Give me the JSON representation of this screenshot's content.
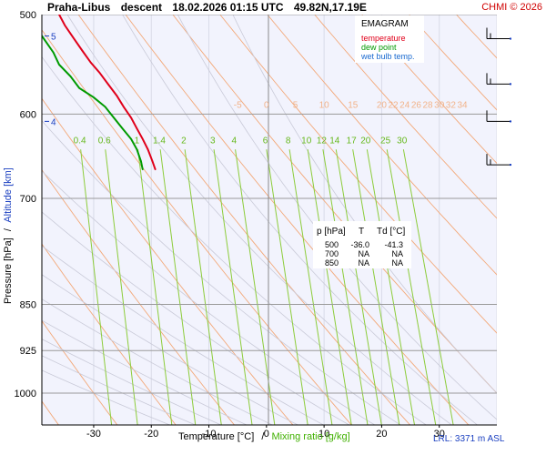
{
  "header": {
    "station": "Praha-Libus",
    "mode": "descent",
    "datetime": "18.02.2026 01:15 UTC",
    "coords": "49.82N,17.19E",
    "credit": "CHMI © 2026"
  },
  "legend": {
    "title": "EMAGRAM",
    "items": [
      {
        "label": "temperature",
        "color": "#e0001a"
      },
      {
        "label": "dew point",
        "color": "#009a00"
      },
      {
        "label": "wet bulb temp.",
        "color": "#1a6ad0"
      }
    ]
  },
  "info_table": {
    "headers": [
      "p [hPa]",
      "T",
      "Td [°C]"
    ],
    "rows": [
      [
        "500",
        "-36.0",
        "-41.3"
      ],
      [
        "700",
        "NA",
        "NA"
      ],
      [
        "850",
        "NA",
        "NA"
      ]
    ]
  },
  "footer": {
    "lrl": "LRL: 3371 m ASL",
    "x_temp_label": "Temperature [°C]",
    "x_sep": "/",
    "x_mix_label": "Mixing ratio [g/kg]"
  },
  "y_axis": {
    "pressure_label": "Pressure [hPa]",
    "sep": "/",
    "altitude_label": "Altitude [km]"
  },
  "chart_data": {
    "type": "line",
    "y_scale": "log",
    "x_range": [
      -39,
      40
    ],
    "y_range": [
      1060,
      500
    ],
    "x_ticks": [
      -30,
      -20,
      -10,
      0,
      10,
      20,
      30
    ],
    "y_ticks": [
      500,
      600,
      700,
      850,
      925,
      1000
    ],
    "altitude_ticks": [
      {
        "label": "5",
        "p": 520
      },
      {
        "label": "4",
        "p": 608
      }
    ],
    "mixing_ratio_labels": [
      "0.4",
      "0.6",
      "1",
      "1.4",
      "2",
      "3",
      "4",
      "6",
      "8",
      "10",
      "12",
      "14",
      "17",
      "20",
      "25",
      "30"
    ],
    "adiabat_labels": [
      "-5",
      "0",
      "5",
      "10",
      "15",
      "20",
      "22",
      "24",
      "26",
      "28",
      "30",
      "32",
      "34"
    ],
    "series": [
      {
        "name": "temperature",
        "color": "#e0001a",
        "points": [
          [
            -36,
            500
          ],
          [
            -35,
            510
          ],
          [
            -33.5,
            522
          ],
          [
            -32,
            534
          ],
          [
            -30.5,
            546
          ],
          [
            -29,
            556
          ],
          [
            -27.5,
            568
          ],
          [
            -26,
            580
          ],
          [
            -24.8,
            592
          ],
          [
            -23.5,
            604
          ],
          [
            -22.5,
            616
          ],
          [
            -21.5,
            628
          ],
          [
            -20.6,
            640
          ],
          [
            -19.8,
            654
          ],
          [
            -19.3,
            664
          ]
        ]
      },
      {
        "name": "dew point",
        "color": "#009a00",
        "points": [
          [
            -41.3,
            500
          ],
          [
            -40,
            512
          ],
          [
            -38.5,
            524
          ],
          [
            -37,
            536
          ],
          [
            -36,
            548
          ],
          [
            -34,
            560
          ],
          [
            -32.5,
            572
          ],
          [
            -30,
            582
          ],
          [
            -28,
            592
          ],
          [
            -26.5,
            604
          ],
          [
            -25,
            616
          ],
          [
            -23.5,
            628
          ],
          [
            -22.5,
            640
          ],
          [
            -21.8,
            654
          ],
          [
            -21.5,
            664
          ]
        ]
      }
    ],
    "wind_barbs": [
      {
        "p": 520,
        "dir": 270,
        "speed_kt": 25
      },
      {
        "p": 565,
        "dir": 270,
        "speed_kt": 25
      },
      {
        "p": 605,
        "dir": 265,
        "speed_kt": 20
      },
      {
        "p": 655,
        "dir": 250,
        "speed_kt": 25
      }
    ]
  }
}
